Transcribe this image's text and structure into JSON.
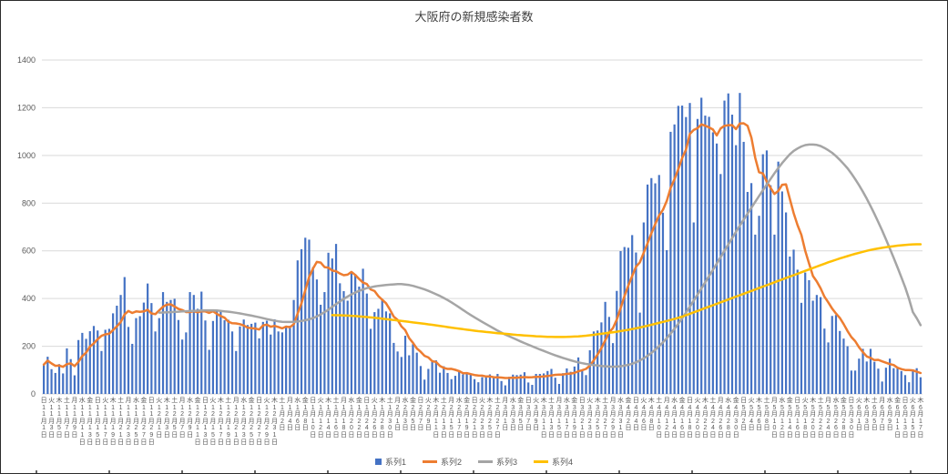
{
  "chart_data": {
    "type": "combo_bar_line",
    "title": "大阪府の新規感染者数",
    "colors": {
      "grid": "#D9D9D9",
      "axis_text": "#595959",
      "title_text": "#404040",
      "background": "#FFFFFF",
      "frame": "#2B2B2B"
    },
    "y_axis": {
      "min": 0,
      "max": 1400,
      "tick_step": 200,
      "ticks": [
        0,
        200,
        400,
        600,
        800,
        1000,
        1200,
        1400
      ]
    },
    "x_axis": {
      "start_date": "2020-11-01",
      "end_date": "2021-06-17",
      "label_interval_days": 2,
      "weekday_chars": [
        "日",
        "月",
        "火",
        "水",
        "木",
        "金",
        "土"
      ],
      "month_suffix": "月",
      "day_suffix": "日"
    },
    "legend": {
      "position": "bottom",
      "entries": [
        "系列1",
        "系列2",
        "系列3",
        "系列4"
      ]
    },
    "series": [
      {
        "name": "系列1",
        "type": "bar",
        "color": "#4472C4",
        "values": [
          123,
          156,
          104,
          88,
          125,
          86,
          191,
          146,
          78,
          226,
          256,
          231,
          263,
          285,
          266,
          180,
          269,
          273,
          338,
          370,
          415,
          490,
          281,
          210,
          318,
          326,
          383,
          463,
          381,
          262,
          318,
          427,
          386,
          394,
          399,
          310,
          228,
          258,
          427,
          415,
          357,
          429,
          308,
          185,
          306,
          351,
          351,
          309,
          311,
          262,
          180,
          283,
          312,
          289,
          294,
          299,
          233,
          302,
          307,
          249,
          313,
          262,
          258,
          286,
          286,
          394,
          560,
          607,
          655,
          647,
          532,
          480,
          374,
          427,
          592,
          568,
          629,
          464,
          431,
          391,
          506,
          501,
          450,
          525,
          421,
          273,
          343,
          357,
          397,
          346,
          338,
          214,
          178,
          155,
          244,
          162,
          209,
          173,
          117,
          60,
          105,
          135,
          141,
          89,
          116,
          88,
          62,
          76,
          97,
          82,
          91,
          86,
          62,
          49,
          70,
          72,
          82,
          69,
          84,
          54,
          36,
          72,
          81,
          79,
          81,
          91,
          48,
          38,
          84,
          84,
          86,
          96,
          105,
          68,
          42,
          87,
          107,
          93,
          115,
          153,
          100,
          79,
          183,
          262,
          266,
          300,
          386,
          323,
          213,
          432,
          599,
          616,
          613,
          666,
          593,
          341,
          719,
          878,
          905,
          883,
          918,
          760,
          603,
          1099,
          1130,
          1208,
          1209,
          1161,
          1220,
          719,
          1153,
          1242,
          1167,
          1162,
          1097,
          1050,
          922,
          1230,
          1260,
          1171,
          1043,
          1262,
          1057,
          847,
          884,
          668,
          747,
          1005,
          1021,
          875,
          668,
          974,
          849,
          761,
          576,
          605,
          521,
          382,
          509,
          477,
          391,
          415,
          406,
          274,
          216,
          327,
          331,
          264,
          232,
          200,
          98,
          98,
          148,
          189,
          136,
          189,
          135,
          106,
          52,
          110,
          148,
          108,
          110,
          96,
          79,
          49,
          101,
          108,
          70
        ]
      },
      {
        "name": "系列2",
        "type": "line",
        "color": "#ED7D31",
        "derivation": "7-day moving average of 系列1"
      },
      {
        "name": "系列3",
        "type": "line",
        "color": "#A5A5A5",
        "points": [
          [
            30,
            340
          ],
          [
            36,
            346
          ],
          [
            44,
            352
          ],
          [
            50,
            341
          ],
          [
            56,
            322
          ],
          [
            60,
            306
          ],
          [
            63,
            300
          ],
          [
            68,
            306
          ],
          [
            72,
            330
          ],
          [
            75,
            365
          ],
          [
            78,
            400
          ],
          [
            82,
            435
          ],
          [
            86,
            452
          ],
          [
            91,
            460
          ],
          [
            94,
            462
          ],
          [
            99,
            440
          ],
          [
            105,
            396
          ],
          [
            111,
            330
          ],
          [
            119,
            256
          ],
          [
            126,
            206
          ],
          [
            133,
            161
          ],
          [
            139,
            131
          ],
          [
            145,
            116
          ],
          [
            150,
            113
          ],
          [
            155,
            136
          ],
          [
            160,
            196
          ],
          [
            165,
            291
          ],
          [
            170,
            416
          ],
          [
            175,
            546
          ],
          [
            180,
            681
          ],
          [
            185,
            806
          ],
          [
            190,
            926
          ],
          [
            193,
            991
          ],
          [
            196,
            1036
          ],
          [
            200,
            1051
          ],
          [
            203,
            1036
          ],
          [
            207,
            986
          ],
          [
            211,
            906
          ],
          [
            215,
            791
          ],
          [
            219,
            651
          ],
          [
            223,
            491
          ],
          [
            226,
            361
          ],
          [
            228,
            216
          ]
        ]
      },
      {
        "name": "系列4",
        "type": "line",
        "color": "#FFC000",
        "points": [
          [
            75,
            331
          ],
          [
            80,
            328
          ],
          [
            85,
            321
          ],
          [
            90,
            312
          ],
          [
            96,
            300
          ],
          [
            102,
            288
          ],
          [
            106,
            278
          ],
          [
            112,
            265
          ],
          [
            116,
            258
          ],
          [
            124,
            246
          ],
          [
            130,
            240
          ],
          [
            134,
            238
          ],
          [
            140,
            242
          ],
          [
            144,
            250
          ],
          [
            150,
            263
          ],
          [
            155,
            278
          ],
          [
            160,
            298
          ],
          [
            165,
            318
          ],
          [
            170,
            348
          ],
          [
            175,
            378
          ],
          [
            180,
            408
          ],
          [
            185,
            438
          ],
          [
            190,
            468
          ],
          [
            195,
            498
          ],
          [
            200,
            528
          ],
          [
            205,
            558
          ],
          [
            211,
            588
          ],
          [
            216,
            608
          ],
          [
            221,
            620
          ],
          [
            225,
            627
          ],
          [
            228,
            628
          ]
        ]
      }
    ]
  }
}
